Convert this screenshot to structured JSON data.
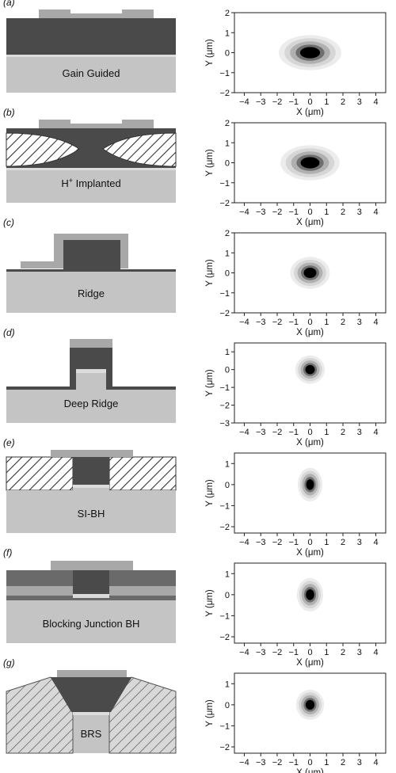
{
  "panels": [
    {
      "letter": "(a)",
      "structure": "Gain Guided",
      "superscript": "",
      "y_range": [
        -2,
        2
      ],
      "y_ticks": [
        "2",
        "1",
        "0",
        "−1",
        "−2"
      ],
      "spot": {
        "rx": 1.9,
        "ry": 0.55
      }
    },
    {
      "letter": "(b)",
      "structure": "H",
      "superscript": "+",
      "structure_rest": " Implanted",
      "y_range": [
        -2,
        2
      ],
      "y_ticks": [
        "2",
        "1",
        "0",
        "−1",
        "−2"
      ],
      "spot": {
        "rx": 1.8,
        "ry": 0.55
      }
    },
    {
      "letter": "(c)",
      "structure": "Ridge",
      "superscript": "",
      "y_range": [
        -2,
        2
      ],
      "y_ticks": [
        "2",
        "1",
        "0",
        "−1",
        "−2"
      ],
      "spot": {
        "rx": 1.2,
        "ry": 0.5
      }
    },
    {
      "letter": "(d)",
      "structure": "Deep Ridge",
      "superscript": "",
      "y_range": [
        -3,
        1.5
      ],
      "y_ticks": [
        "1",
        "0",
        "−1",
        "−2",
        "−3"
      ],
      "spot": {
        "rx": 0.9,
        "ry": 0.5
      }
    },
    {
      "letter": "(e)",
      "structure": "SI-BH",
      "superscript": "",
      "y_range": [
        -2.3,
        1.5
      ],
      "y_ticks": [
        "1",
        "0",
        "−1",
        "−2"
      ],
      "spot": {
        "rx": 0.75,
        "ry": 0.5
      }
    },
    {
      "letter": "(f)",
      "structure": "Blocking Junction BH",
      "superscript": "",
      "y_range": [
        -2.3,
        1.5
      ],
      "y_ticks": [
        "1",
        "0",
        "−1",
        "−2"
      ],
      "spot": {
        "rx": 0.8,
        "ry": 0.5
      }
    },
    {
      "letter": "(g)",
      "structure": "BRS",
      "superscript": "",
      "y_range": [
        -2.3,
        1.5
      ],
      "y_ticks": [
        "1",
        "0",
        "−1",
        "−2"
      ],
      "spot": {
        "rx": 0.85,
        "ry": 0.45
      }
    }
  ],
  "axes": {
    "x_label": "X (μm)",
    "y_label": "Y (μm)",
    "x_range": [
      -4.6,
      4.6
    ],
    "x_ticks": [
      "−4",
      "−3",
      "−2",
      "−1",
      "0",
      "1",
      "2",
      "3",
      "4"
    ]
  },
  "colors": {
    "substrate": "#c4c4c4",
    "active": "#4a4a4a",
    "contact": "#a8a8a8",
    "thin_line": "#dcdcdc",
    "hatch_bg": "#ffffff",
    "layer_mid": "#7a7a7a"
  }
}
